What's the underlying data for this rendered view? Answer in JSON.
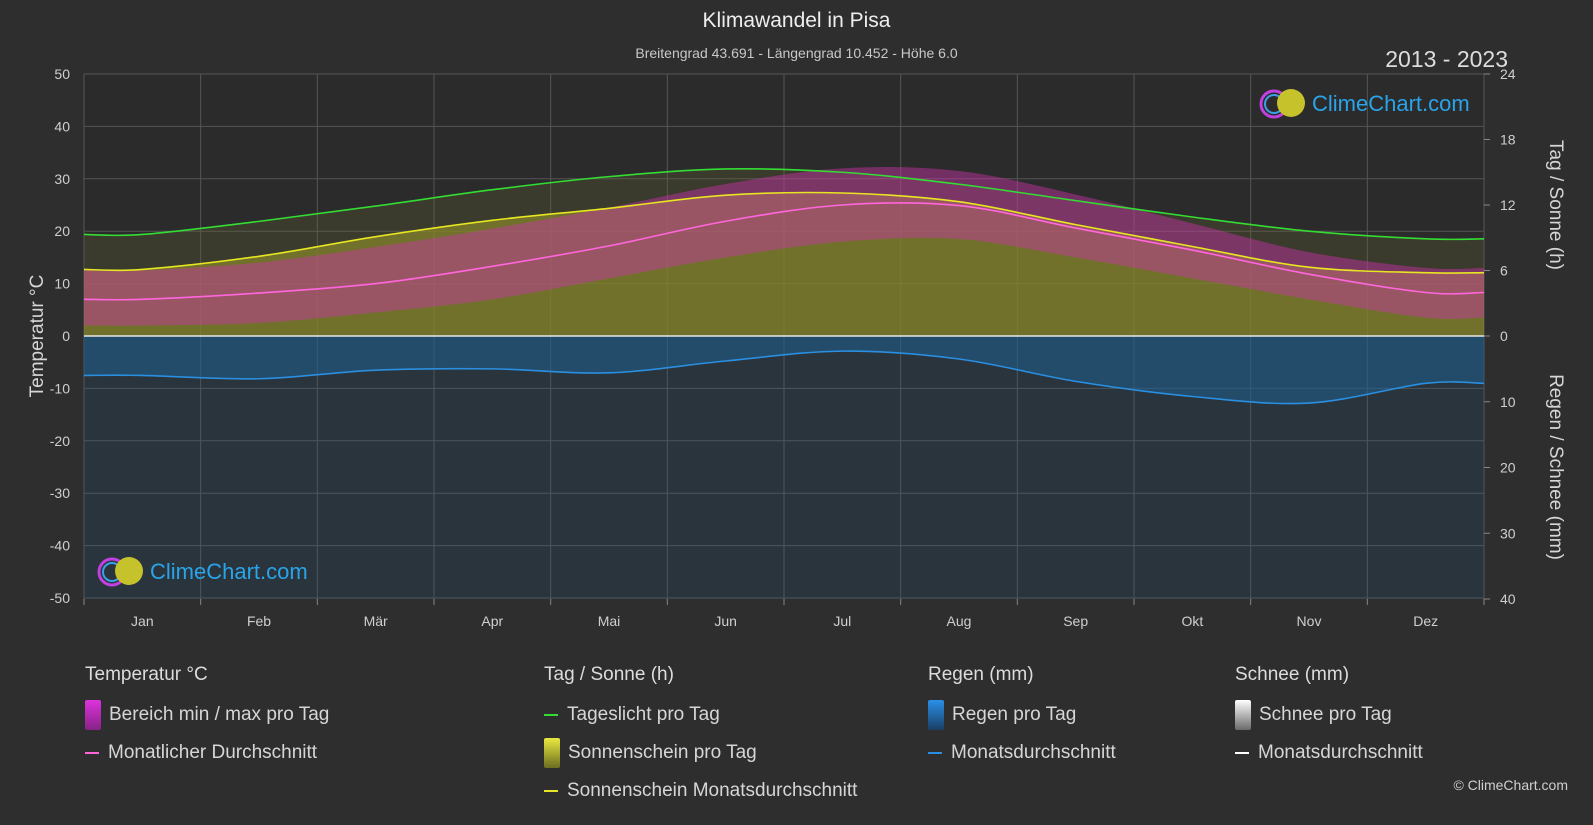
{
  "header": {
    "title": "Klimawandel in Pisa",
    "subtitle": "Breitengrad 43.691 - Längengrad 10.452 - Höhe 6.0",
    "years": "2013 - 2023"
  },
  "logo_text": "ClimeChart.com",
  "copyright": "© ClimeChart.com",
  "axes": {
    "left_label": "Temperatur °C",
    "right_top_label": "Tag / Sonne (h)",
    "right_bottom_label": "Regen / Schnee (mm)",
    "left_ticks": [
      "50",
      "40",
      "30",
      "20",
      "10",
      "0",
      "-10",
      "-20",
      "-30",
      "-40",
      "-50"
    ],
    "right_top_ticks": [
      "24",
      "18",
      "12",
      "6",
      "0"
    ],
    "right_bottom_ticks": [
      "10",
      "20",
      "30",
      "40"
    ]
  },
  "legend": {
    "temp": {
      "head": "Temperatur °C",
      "item1": "Bereich min / max pro Tag",
      "item2": "Monatlicher Durchschnitt"
    },
    "sun": {
      "head": "Tag / Sonne (h)",
      "item1": "Tageslicht pro Tag",
      "item2": "Sonnenschein pro Tag",
      "item3": "Sonnenschein Monatsdurchschnitt"
    },
    "rain": {
      "head": "Regen (mm)",
      "item1": "Regen pro Tag",
      "item2": "Monatsdurchschnitt"
    },
    "snow": {
      "head": "Schnee (mm)",
      "item1": "Schnee pro Tag",
      "item2": "Monatsdurchschnitt"
    }
  },
  "colors": {
    "daylight": "#33dd33",
    "sunshine_avg": "#e6e622",
    "temp_avg": "#ff66dd",
    "rain_avg": "#2a8fe0",
    "range_band": "#cc33aa",
    "sunshine_band": "#8f8f28",
    "rain_band": "#1f5f8f"
  },
  "chart_data": {
    "type": "line",
    "categories": [
      "Jan",
      "Feb",
      "Mär",
      "Apr",
      "Mai",
      "Jun",
      "Jul",
      "Aug",
      "Sep",
      "Okt",
      "Nov",
      "Dez"
    ],
    "temp_ylim": [
      -50,
      50
    ],
    "sun_ylim": [
      0,
      24
    ],
    "rain_ylim": [
      0,
      40
    ],
    "series": [
      {
        "name": "Tageslicht pro Tag",
        "axis": "sun",
        "values": [
          9.3,
          10.5,
          11.9,
          13.4,
          14.6,
          15.3,
          15.0,
          13.9,
          12.4,
          10.9,
          9.6,
          8.9
        ]
      },
      {
        "name": "Sonnenschein Monatsdurchschnitt",
        "axis": "sun",
        "values": [
          6.1,
          7.3,
          9.1,
          10.6,
          11.7,
          12.9,
          13.1,
          12.3,
          10.2,
          8.2,
          6.3,
          5.8
        ]
      },
      {
        "name": "Monatlicher Durchschnitt",
        "axis": "temp",
        "values": [
          7.0,
          8.2,
          10.0,
          13.3,
          17.2,
          21.9,
          25.0,
          24.9,
          20.6,
          16.4,
          11.8,
          8.3
        ]
      },
      {
        "name": "Monatsdurchschnitt",
        "axis": "rain",
        "values": [
          6.0,
          6.5,
          5.2,
          5.0,
          5.6,
          3.8,
          2.3,
          3.5,
          6.9,
          9.2,
          10.2,
          7.2
        ]
      }
    ],
    "temp_range_max": [
      12.5,
      14.0,
      17.0,
      20.5,
      24.5,
      29.0,
      32.0,
      31.5,
      27.0,
      21.5,
      16.0,
      13.0
    ],
    "temp_range_min": [
      2.0,
      2.5,
      4.5,
      7.0,
      11.0,
      15.0,
      18.0,
      18.5,
      15.0,
      11.0,
      7.0,
      3.5
    ]
  }
}
